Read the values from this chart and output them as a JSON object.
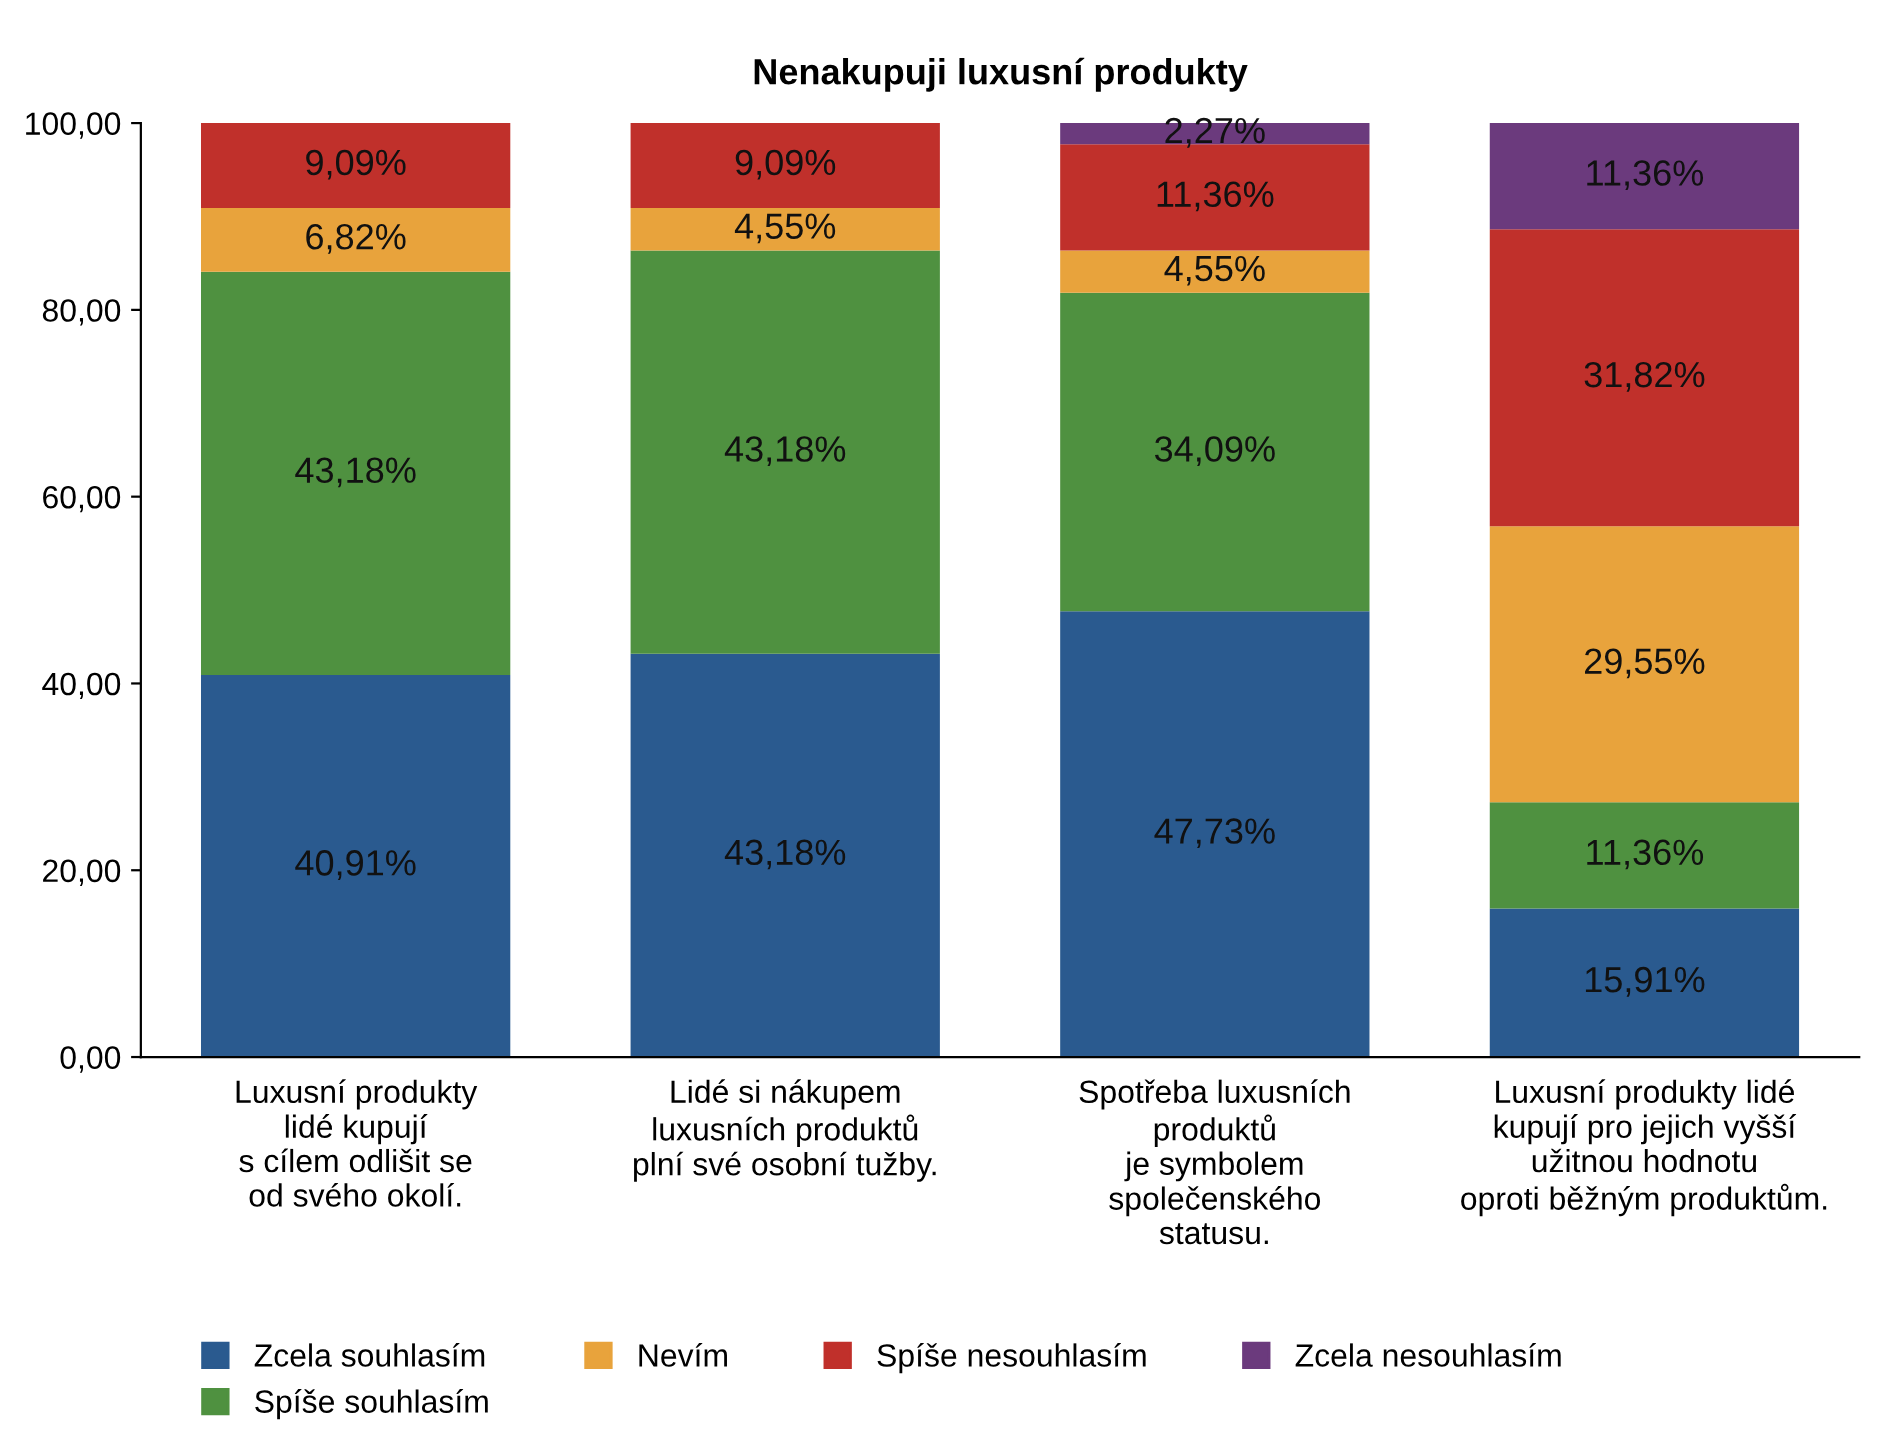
{
  "chart_data": {
    "type": "bar",
    "stacked": true,
    "title": "Nenakupuji luxusní produkty",
    "categories": [
      "Luxusní produkty\nlidé kupují\ns cílem odlišit se\nod svého okolí.",
      "Lidé si nákupem\nluxusních produktů\nplní své osobní tužby.",
      "Spotřeba luxusních\nproduktů\nje symbolem\nspolečenského\nstatusu.",
      "Luxusní produkty lidé\nkupují pro jejich vyšší\nužitnou hodnotu\noproti běžným produktům."
    ],
    "series": [
      {
        "name": "Zcela souhlasím",
        "color": "#2a5a8f",
        "values": [
          40.91,
          43.18,
          47.73,
          15.91
        ],
        "value_labels": [
          "40,91%",
          "43,18%",
          "47,73%",
          "15,91%"
        ]
      },
      {
        "name": "Spíše souhlasím",
        "color": "#4f9140",
        "values": [
          43.18,
          43.18,
          34.09,
          11.36
        ],
        "value_labels": [
          "43,18%",
          "43,18%",
          "34,09%",
          "11,36%"
        ]
      },
      {
        "name": "Nevím",
        "color": "#e8a33c",
        "values": [
          6.82,
          4.55,
          4.55,
          29.55
        ],
        "value_labels": [
          "6,82%",
          "4,55%",
          "4,55%",
          "29,55%"
        ]
      },
      {
        "name": "Spíše nesouhlasím",
        "color": "#c0302b",
        "values": [
          9.09,
          9.09,
          11.36,
          31.82
        ],
        "value_labels": [
          "9,09%",
          "9,09%",
          "11,36%",
          "31,82%"
        ]
      },
      {
        "name": "Zcela nesouhlasím",
        "color": "#6b3a7d",
        "values": [
          null,
          null,
          2.27,
          11.36
        ],
        "value_labels": [
          null,
          null,
          "2,27%",
          "11,36%"
        ]
      }
    ],
    "ylim": [
      0,
      100
    ],
    "yticks": [
      {
        "value": 0,
        "label": "0,00"
      },
      {
        "value": 20,
        "label": "20,00"
      },
      {
        "value": 40,
        "label": "40,00"
      },
      {
        "value": 60,
        "label": "60,00"
      },
      {
        "value": 80,
        "label": "80,00"
      },
      {
        "value": 100,
        "label": "100,00"
      }
    ],
    "grid": false,
    "legend": "bottom"
  }
}
